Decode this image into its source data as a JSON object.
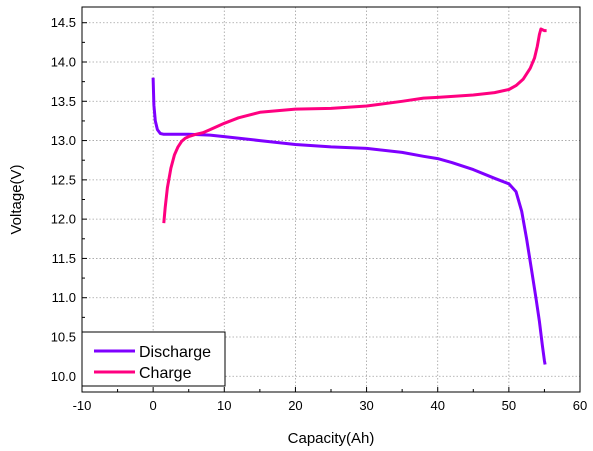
{
  "chart_data": {
    "type": "line",
    "title": "",
    "xlabel": "Capacity(Ah)",
    "ylabel": "Voltage(V)",
    "xlim": [
      -10,
      60
    ],
    "ylim": [
      9.8,
      14.7
    ],
    "xticks": [
      -10,
      0,
      10,
      20,
      30,
      40,
      50,
      60
    ],
    "xtick_labels": [
      "-10",
      "0",
      "10",
      "20",
      "30",
      "40",
      "50",
      "60"
    ],
    "yticks": [
      10.0,
      10.5,
      11.0,
      11.5,
      12.0,
      12.5,
      13.0,
      13.5,
      14.0,
      14.5
    ],
    "ytick_labels": [
      "10.0",
      "10.5",
      "11.0",
      "11.5",
      "12.0",
      "12.5",
      "13.0",
      "13.5",
      "14.0",
      "14.5"
    ],
    "grid": true,
    "legend_position": "bottom-left",
    "series": [
      {
        "name": "Discharge",
        "color": "#7f00ff",
        "x": [
          0,
          0.1,
          0.3,
          0.6,
          1.0,
          1.5,
          2.0,
          3,
          5,
          8,
          10,
          15,
          20,
          25,
          30,
          35,
          38,
          40,
          42,
          45,
          48,
          50,
          51,
          51.8,
          52.5,
          53.2,
          53.8,
          54.3,
          54.7,
          55.0,
          55.1
        ],
        "y": [
          13.8,
          13.45,
          13.25,
          13.14,
          13.09,
          13.08,
          13.08,
          13.08,
          13.08,
          13.07,
          13.05,
          13.0,
          12.95,
          12.92,
          12.9,
          12.85,
          12.8,
          12.77,
          12.72,
          12.63,
          12.52,
          12.45,
          12.35,
          12.1,
          11.75,
          11.35,
          11.0,
          10.7,
          10.4,
          10.2,
          10.15
        ]
      },
      {
        "name": "Charge",
        "color": "#ff0080",
        "x": [
          1.5,
          1.7,
          2.0,
          2.5,
          3.0,
          3.5,
          4.0,
          4.5,
          5,
          6,
          7,
          8,
          10,
          12,
          15,
          20,
          25,
          30,
          35,
          38,
          40,
          45,
          48,
          50,
          51,
          52,
          53,
          53.6,
          54.0,
          54.3,
          54.5,
          55.0,
          55.3
        ],
        "y": [
          11.95,
          12.15,
          12.4,
          12.65,
          12.82,
          12.92,
          12.99,
          13.03,
          13.05,
          13.08,
          13.1,
          13.14,
          13.22,
          13.29,
          13.36,
          13.4,
          13.41,
          13.44,
          13.5,
          13.54,
          13.55,
          13.58,
          13.61,
          13.65,
          13.7,
          13.78,
          13.92,
          14.05,
          14.2,
          14.35,
          14.42,
          14.4,
          14.4
        ]
      }
    ]
  }
}
